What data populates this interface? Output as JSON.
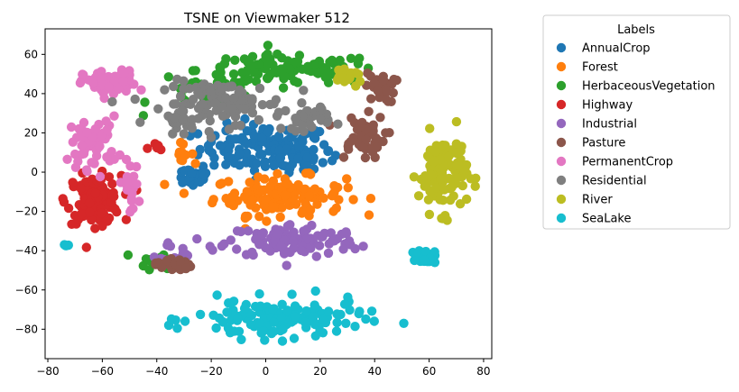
{
  "chart_data": {
    "type": "scatter",
    "title": "TSNE on Viewmaker 512",
    "xlabel": "",
    "ylabel": "",
    "xlim": [
      -81,
      83
    ],
    "ylim": [
      -95,
      73
    ],
    "xticks": [
      -80,
      -60,
      -40,
      -20,
      0,
      20,
      40,
      60,
      80
    ],
    "yticks": [
      -80,
      -60,
      -40,
      -20,
      0,
      20,
      40,
      60
    ],
    "grid": false,
    "legend": {
      "title": "Labels",
      "placement": "outside-right"
    },
    "series": [
      {
        "name": "AnnualCrop",
        "color": "#1f77b4",
        "clusters": [
          {
            "cx": 0,
            "cy": 12,
            "rx": 22,
            "ry": 11,
            "n": 130
          },
          {
            "cx": -27,
            "cy": -2,
            "rx": 7,
            "ry": 5,
            "n": 25
          },
          {
            "cx": 15,
            "cy": 6,
            "rx": 10,
            "ry": 6,
            "n": 20
          }
        ]
      },
      {
        "name": "Forest",
        "color": "#ff7f0e",
        "clusters": [
          {
            "cx": 5,
            "cy": -12,
            "rx": 22,
            "ry": 9,
            "n": 130
          },
          {
            "cx": -32,
            "cy": 10,
            "rx": 5,
            "ry": 4,
            "n": 10
          }
        ]
      },
      {
        "name": "HerbaceousVegetation",
        "color": "#2ca02c",
        "clusters": [
          {
            "cx": 8,
            "cy": 52,
            "rx": 30,
            "ry": 7,
            "n": 110
          },
          {
            "cx": -20,
            "cy": 40,
            "rx": 20,
            "ry": 8,
            "n": 30
          },
          {
            "cx": -38,
            "cy": -45,
            "rx": 8,
            "ry": 5,
            "n": 12
          }
        ]
      },
      {
        "name": "Highway",
        "color": "#d62728",
        "clusters": [
          {
            "cx": -63,
            "cy": -14,
            "rx": 9,
            "ry": 11,
            "n": 120
          },
          {
            "cx": -40,
            "cy": 12,
            "rx": 3,
            "ry": 3,
            "n": 6
          }
        ]
      },
      {
        "name": "Industrial",
        "color": "#9467bd",
        "clusters": [
          {
            "cx": 10,
            "cy": -35,
            "rx": 22,
            "ry": 8,
            "n": 110
          },
          {
            "cx": -30,
            "cy": -40,
            "rx": 8,
            "ry": 5,
            "n": 15
          }
        ]
      },
      {
        "name": "Pasture",
        "color": "#8c564b",
        "clusters": [
          {
            "cx": 35,
            "cy": 18,
            "rx": 8,
            "ry": 10,
            "n": 50
          },
          {
            "cx": 42,
            "cy": 43,
            "rx": 5,
            "ry": 7,
            "n": 30
          },
          {
            "cx": -34,
            "cy": -47,
            "rx": 6,
            "ry": 3,
            "n": 25
          }
        ]
      },
      {
        "name": "PermanentCrop",
        "color": "#e377c2",
        "clusters": [
          {
            "cx": -57,
            "cy": 45,
            "rx": 9,
            "ry": 6,
            "n": 70
          },
          {
            "cx": -63,
            "cy": 15,
            "rx": 8,
            "ry": 12,
            "n": 60
          },
          {
            "cx": -50,
            "cy": -8,
            "rx": 3,
            "ry": 12,
            "n": 20
          }
        ]
      },
      {
        "name": "Residential",
        "color": "#7f7f7f",
        "clusters": [
          {
            "cx": -15,
            "cy": 35,
            "rx": 20,
            "ry": 10,
            "n": 110
          },
          {
            "cx": 15,
            "cy": 28,
            "rx": 8,
            "ry": 6,
            "n": 30
          },
          {
            "cx": -30,
            "cy": 26,
            "rx": 6,
            "ry": 4,
            "n": 20
          }
        ]
      },
      {
        "name": "River",
        "color": "#bcbd22",
        "clusters": [
          {
            "cx": 65,
            "cy": 0,
            "rx": 8,
            "ry": 18,
            "n": 120
          },
          {
            "cx": 30,
            "cy": 48,
            "rx": 5,
            "ry": 3,
            "n": 20
          }
        ]
      },
      {
        "name": "SeaLake",
        "color": "#17becf",
        "clusters": [
          {
            "cx": 5,
            "cy": -75,
            "rx": 28,
            "ry": 9,
            "n": 140
          },
          {
            "cx": 59,
            "cy": -43,
            "rx": 3,
            "ry": 3,
            "n": 30
          },
          {
            "cx": -73,
            "cy": -37,
            "rx": 1,
            "ry": 1,
            "n": 4
          }
        ]
      }
    ]
  }
}
